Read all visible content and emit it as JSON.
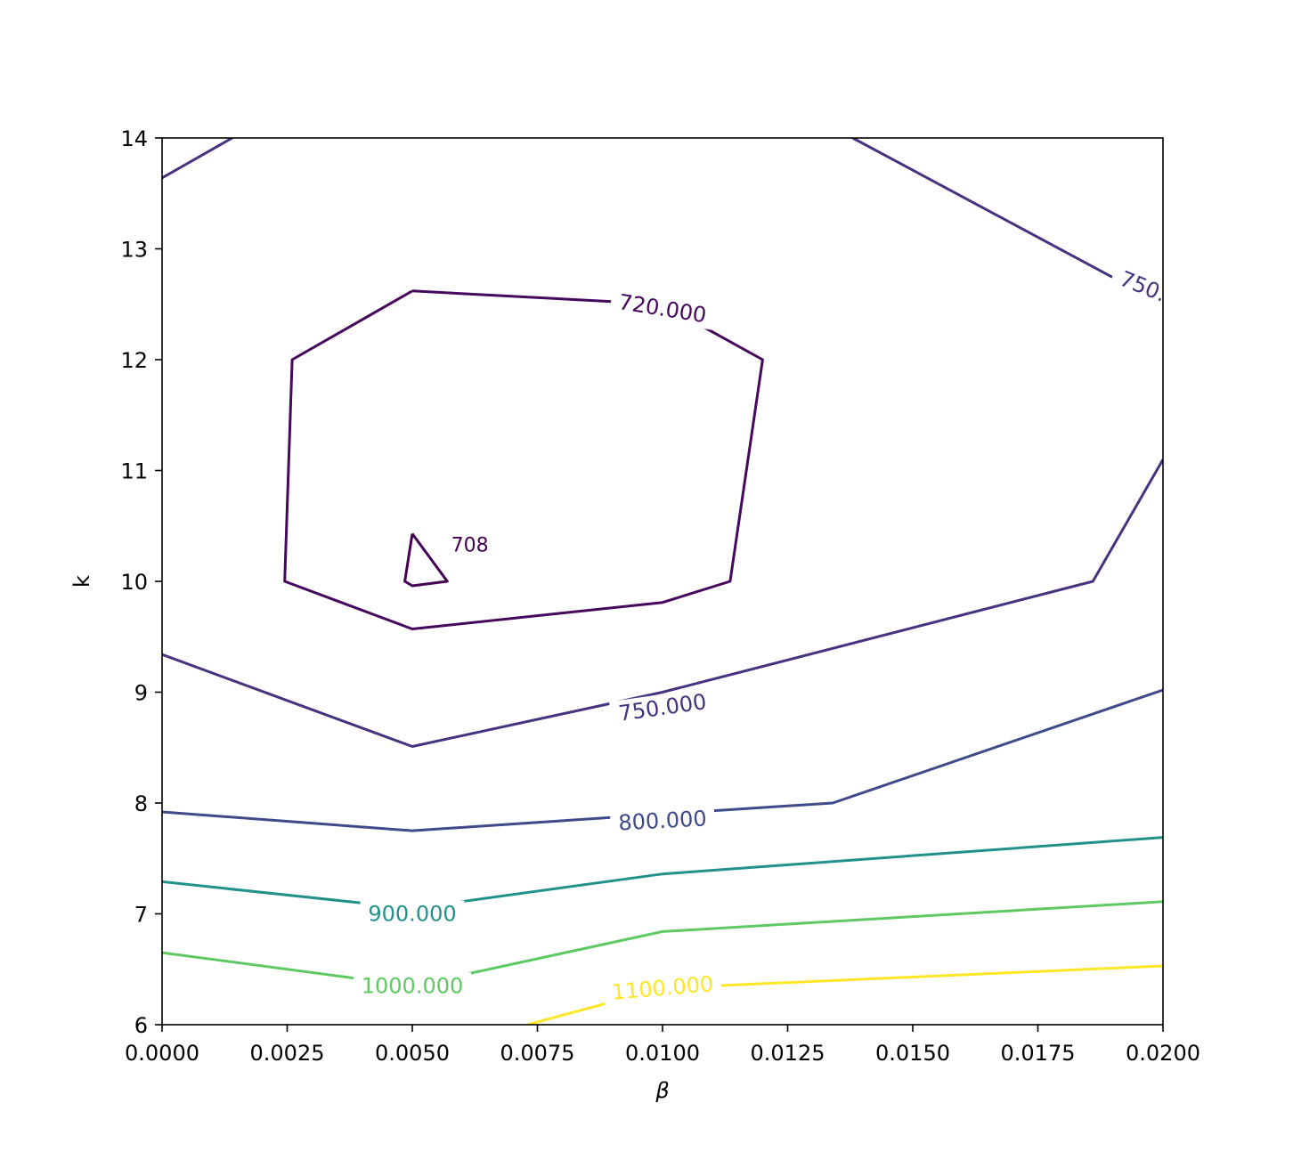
{
  "chart_data": {
    "type": "contour",
    "xlabel": "β",
    "ylabel": "k",
    "xlim": [
      0.0,
      0.02
    ],
    "ylim": [
      6,
      14
    ],
    "x_ticks": [
      "0.0000",
      "0.0025",
      "0.0050",
      "0.0075",
      "0.0100",
      "0.0125",
      "0.0150",
      "0.0175",
      "0.0200"
    ],
    "y_ticks": [
      "6",
      "7",
      "8",
      "9",
      "10",
      "11",
      "12",
      "13",
      "14"
    ],
    "grid": false,
    "colormap": "viridis",
    "contours": [
      {
        "level": 708,
        "label": "708",
        "color": "#440154",
        "paths": [
          [
            [
              0.005,
              10.43
            ],
            [
              0.0057,
              10.0
            ],
            [
              0.005,
              9.96
            ],
            [
              0.00485,
              10.0
            ],
            [
              0.005,
              10.43
            ]
          ]
        ]
      },
      {
        "level": 720,
        "label": "720.000",
        "color": "#46085c",
        "paths": [
          [
            [
              0.005,
              12.62
            ],
            [
              0.01,
              12.5
            ],
            [
              0.012,
              12.0
            ],
            [
              0.01135,
              10.0
            ],
            [
              0.01,
              9.81
            ],
            [
              0.005,
              9.57
            ],
            [
              0.00245,
              10.0
            ],
            [
              0.0026,
              12.0
            ],
            [
              0.005,
              12.62
            ]
          ]
        ]
      },
      {
        "level": 750,
        "label": "750.000",
        "color": "#46327e",
        "paths": [
          [
            [
              0.0,
              13.64
            ],
            [
              0.0014,
              14.0
            ]
          ],
          [
            [
              0.0138,
              14.0
            ],
            [
              0.02,
              12.5
            ]
          ],
          [
            [
              0.0,
              9.34
            ],
            [
              0.005,
              8.51
            ],
            [
              0.01,
              9.0
            ],
            [
              0.0186,
              10.0
            ],
            [
              0.02,
              11.1
            ]
          ]
        ]
      },
      {
        "level": 800,
        "label": "800.000",
        "color": "#3e4a89",
        "paths": [
          [
            [
              0.0,
              7.92
            ],
            [
              0.005,
              7.75
            ],
            [
              0.01,
              7.9
            ],
            [
              0.0134,
              8.0
            ],
            [
              0.02,
              9.02
            ]
          ]
        ]
      },
      {
        "level": 900,
        "label": "900.000",
        "color": "#21918c",
        "paths": [
          [
            [
              0.0,
              7.29
            ],
            [
              0.005,
              7.05
            ],
            [
              0.01,
              7.36
            ],
            [
              0.02,
              7.69
            ]
          ]
        ]
      },
      {
        "level": 1000,
        "label": "1000.000",
        "color": "#5ec962",
        "paths": [
          [
            [
              0.0,
              6.65
            ],
            [
              0.005,
              6.35
            ],
            [
              0.01,
              6.84
            ],
            [
              0.02,
              7.11
            ]
          ]
        ]
      },
      {
        "level": 1100,
        "label": "1100.000",
        "color": "#fde725",
        "paths": [
          [
            [
              0.0073,
              6.0
            ],
            [
              0.01,
              6.33
            ],
            [
              0.02,
              6.53
            ]
          ]
        ]
      }
    ],
    "labels": [
      {
        "text": "708",
        "x": 0.00615,
        "y": 10.32,
        "color": "#440154",
        "rotation": 0,
        "small": true
      },
      {
        "text": "720.000",
        "x": 0.01,
        "y": 12.46,
        "color": "#46085c",
        "rotation": 9
      },
      {
        "text": "750.",
        "x": 0.0196,
        "y": 12.66,
        "color": "#46327e",
        "rotation": 22
      },
      {
        "text": "750.000",
        "x": 0.01,
        "y": 8.86,
        "color": "#46327e",
        "rotation": -8
      },
      {
        "text": "800.000",
        "x": 0.01,
        "y": 7.84,
        "color": "#3e4a89",
        "rotation": -3
      },
      {
        "text": "900.000",
        "x": 0.005,
        "y": 7.0,
        "color": "#21918c",
        "rotation": 0
      },
      {
        "text": "1000.000",
        "x": 0.005,
        "y": 6.35,
        "color": "#5ec962",
        "rotation": 0
      },
      {
        "text": "1100.000",
        "x": 0.01,
        "y": 6.33,
        "color": "#fde725",
        "rotation": -5
      }
    ]
  }
}
